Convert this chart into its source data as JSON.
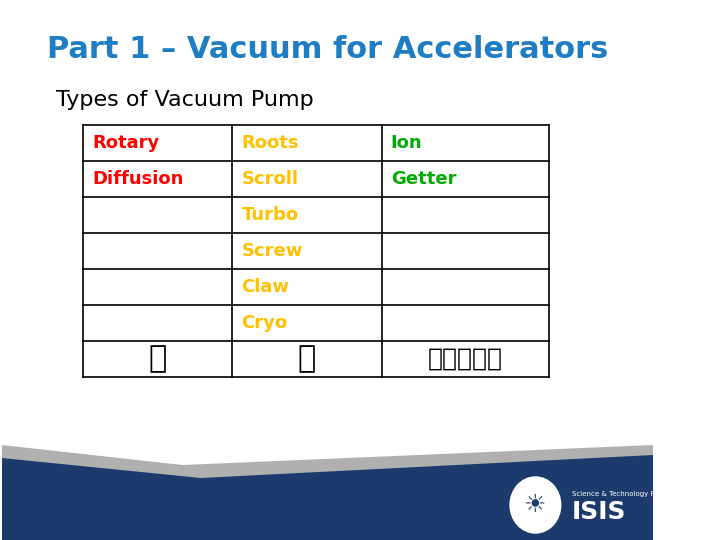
{
  "title": "Part 1 – Vacuum for Accelerators",
  "subtitle": "Types of Vacuum Pump",
  "title_color": "#1F7DC4",
  "subtitle_color": "#000000",
  "background_color": "#FFFFFF",
  "table": {
    "col1": [
      "Rotary",
      "Diffusion",
      "",
      "",
      "",
      "",
      "👎"
    ],
    "col2": [
      "Roots",
      "Scroll",
      "Turbo",
      "Screw",
      "Claw",
      "Cryo",
      "👍"
    ],
    "col3": [
      "Ion",
      "Getter",
      "",
      "",
      "",
      "",
      "👍👍👍👍👍"
    ],
    "col1_colors": [
      "#FF0000",
      "#FF0000",
      "",
      "",
      "",
      "",
      "#000000"
    ],
    "col2_colors": [
      "#FFC000",
      "#FFC000",
      "#FFC000",
      "#FFC000",
      "#FFC000",
      "#FFC000",
      "#000000"
    ],
    "col3_colors": [
      "#00AA00",
      "#00AA00",
      "",
      "",
      "",
      "",
      "#000000"
    ]
  },
  "footer_bg": "#1C3A6B",
  "footer_gray": "#AAAAAA",
  "isis_text": "ISIS",
  "stfc_text": "Science & Technology Facilities Council"
}
